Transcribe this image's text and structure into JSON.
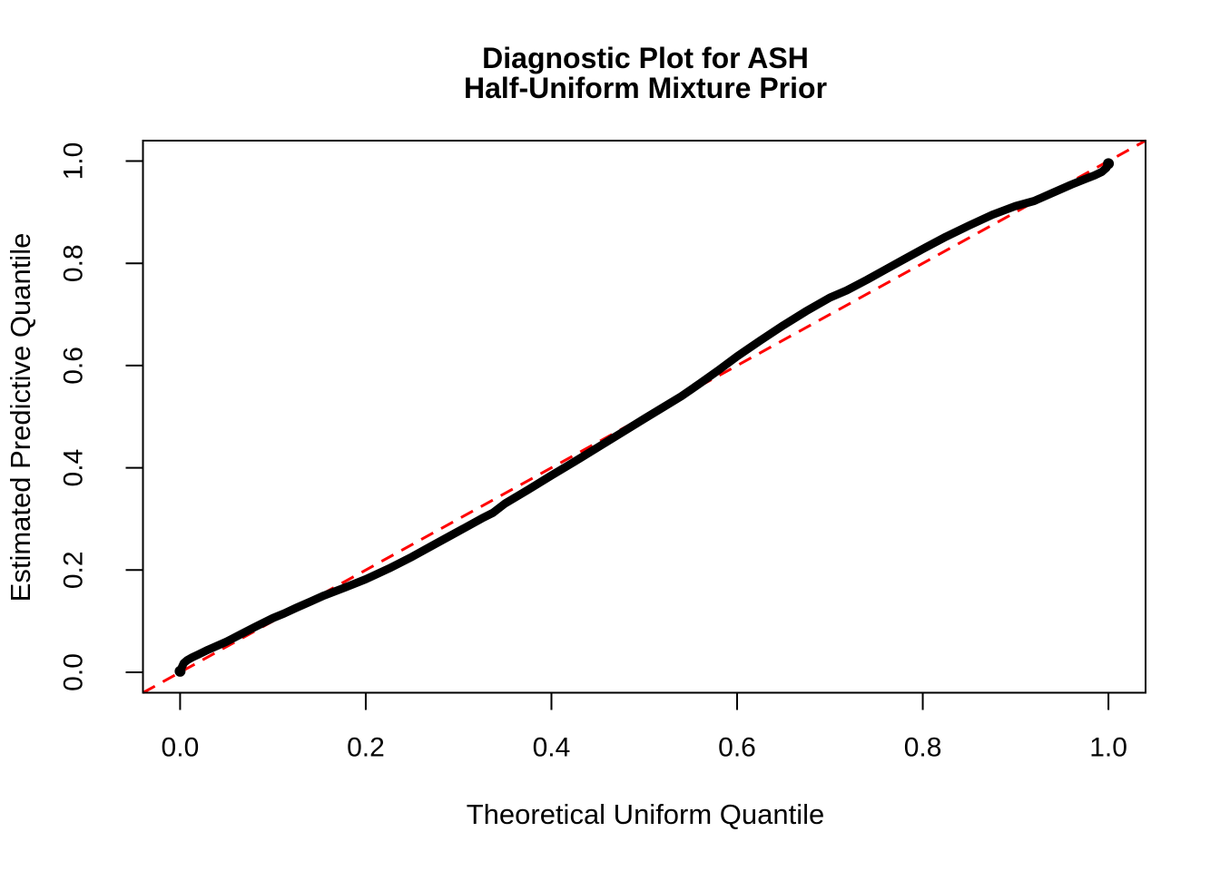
{
  "chart_data": {
    "type": "line",
    "title_line1": "Diagnostic Plot for ASH",
    "title_line2": "Half-Uniform Mixture Prior",
    "xlabel": "Theoretical Uniform Quantile",
    "ylabel": "Estimated Predictive Quantile",
    "xlim": [
      -0.04,
      1.04
    ],
    "ylim": [
      -0.04,
      1.04
    ],
    "grid": false,
    "legend": "none",
    "xticks": {
      "values": [
        0.0,
        0.2,
        0.4,
        0.6,
        0.8,
        1.0
      ],
      "labels": [
        "0.0",
        "0.2",
        "0.4",
        "0.6",
        "0.8",
        "1.0"
      ]
    },
    "yticks": {
      "values": [
        0.0,
        0.2,
        0.4,
        0.6,
        0.8,
        1.0
      ],
      "labels": [
        "0.0",
        "0.2",
        "0.4",
        "0.6",
        "0.8",
        "1.0"
      ]
    },
    "reference_line": {
      "name": "identity-diagonal",
      "slope": 1,
      "intercept": 0,
      "color": "#FF0000",
      "style": "dashed",
      "width": 3
    },
    "colors": {
      "curve": "#000000",
      "reference": "#FF0000",
      "axis": "#000000",
      "background": "#FFFFFF"
    },
    "series": [
      {
        "name": "estimated-predictive-quantile-curve",
        "color": "#000000",
        "line_width": 9,
        "points": [
          [
            0.0,
            0.002
          ],
          [
            0.004,
            0.018
          ],
          [
            0.008,
            0.024
          ],
          [
            0.013,
            0.029
          ],
          [
            0.02,
            0.035
          ],
          [
            0.03,
            0.044
          ],
          [
            0.04,
            0.052
          ],
          [
            0.05,
            0.06
          ],
          [
            0.065,
            0.074
          ],
          [
            0.08,
            0.088
          ],
          [
            0.1,
            0.106
          ],
          [
            0.112,
            0.115
          ],
          [
            0.125,
            0.126
          ],
          [
            0.14,
            0.138
          ],
          [
            0.155,
            0.15
          ],
          [
            0.175,
            0.164
          ],
          [
            0.2,
            0.182
          ],
          [
            0.225,
            0.203
          ],
          [
            0.25,
            0.226
          ],
          [
            0.275,
            0.251
          ],
          [
            0.3,
            0.276
          ],
          [
            0.325,
            0.301
          ],
          [
            0.337,
            0.312
          ],
          [
            0.35,
            0.33
          ],
          [
            0.375,
            0.357
          ],
          [
            0.4,
            0.385
          ],
          [
            0.425,
            0.412
          ],
          [
            0.45,
            0.44
          ],
          [
            0.475,
            0.468
          ],
          [
            0.5,
            0.496
          ],
          [
            0.52,
            0.518
          ],
          [
            0.54,
            0.54
          ],
          [
            0.56,
            0.565
          ],
          [
            0.58,
            0.591
          ],
          [
            0.6,
            0.618
          ],
          [
            0.625,
            0.649
          ],
          [
            0.65,
            0.679
          ],
          [
            0.675,
            0.707
          ],
          [
            0.7,
            0.733
          ],
          [
            0.718,
            0.747
          ],
          [
            0.74,
            0.768
          ],
          [
            0.76,
            0.788
          ],
          [
            0.78,
            0.808
          ],
          [
            0.8,
            0.828
          ],
          [
            0.825,
            0.852
          ],
          [
            0.85,
            0.874
          ],
          [
            0.875,
            0.895
          ],
          [
            0.9,
            0.912
          ],
          [
            0.92,
            0.922
          ],
          [
            0.94,
            0.938
          ],
          [
            0.96,
            0.954
          ],
          [
            0.975,
            0.965
          ],
          [
            0.985,
            0.972
          ],
          [
            0.993,
            0.979
          ],
          [
            0.998,
            0.987
          ],
          [
            1.0,
            0.995
          ]
        ]
      }
    ]
  }
}
